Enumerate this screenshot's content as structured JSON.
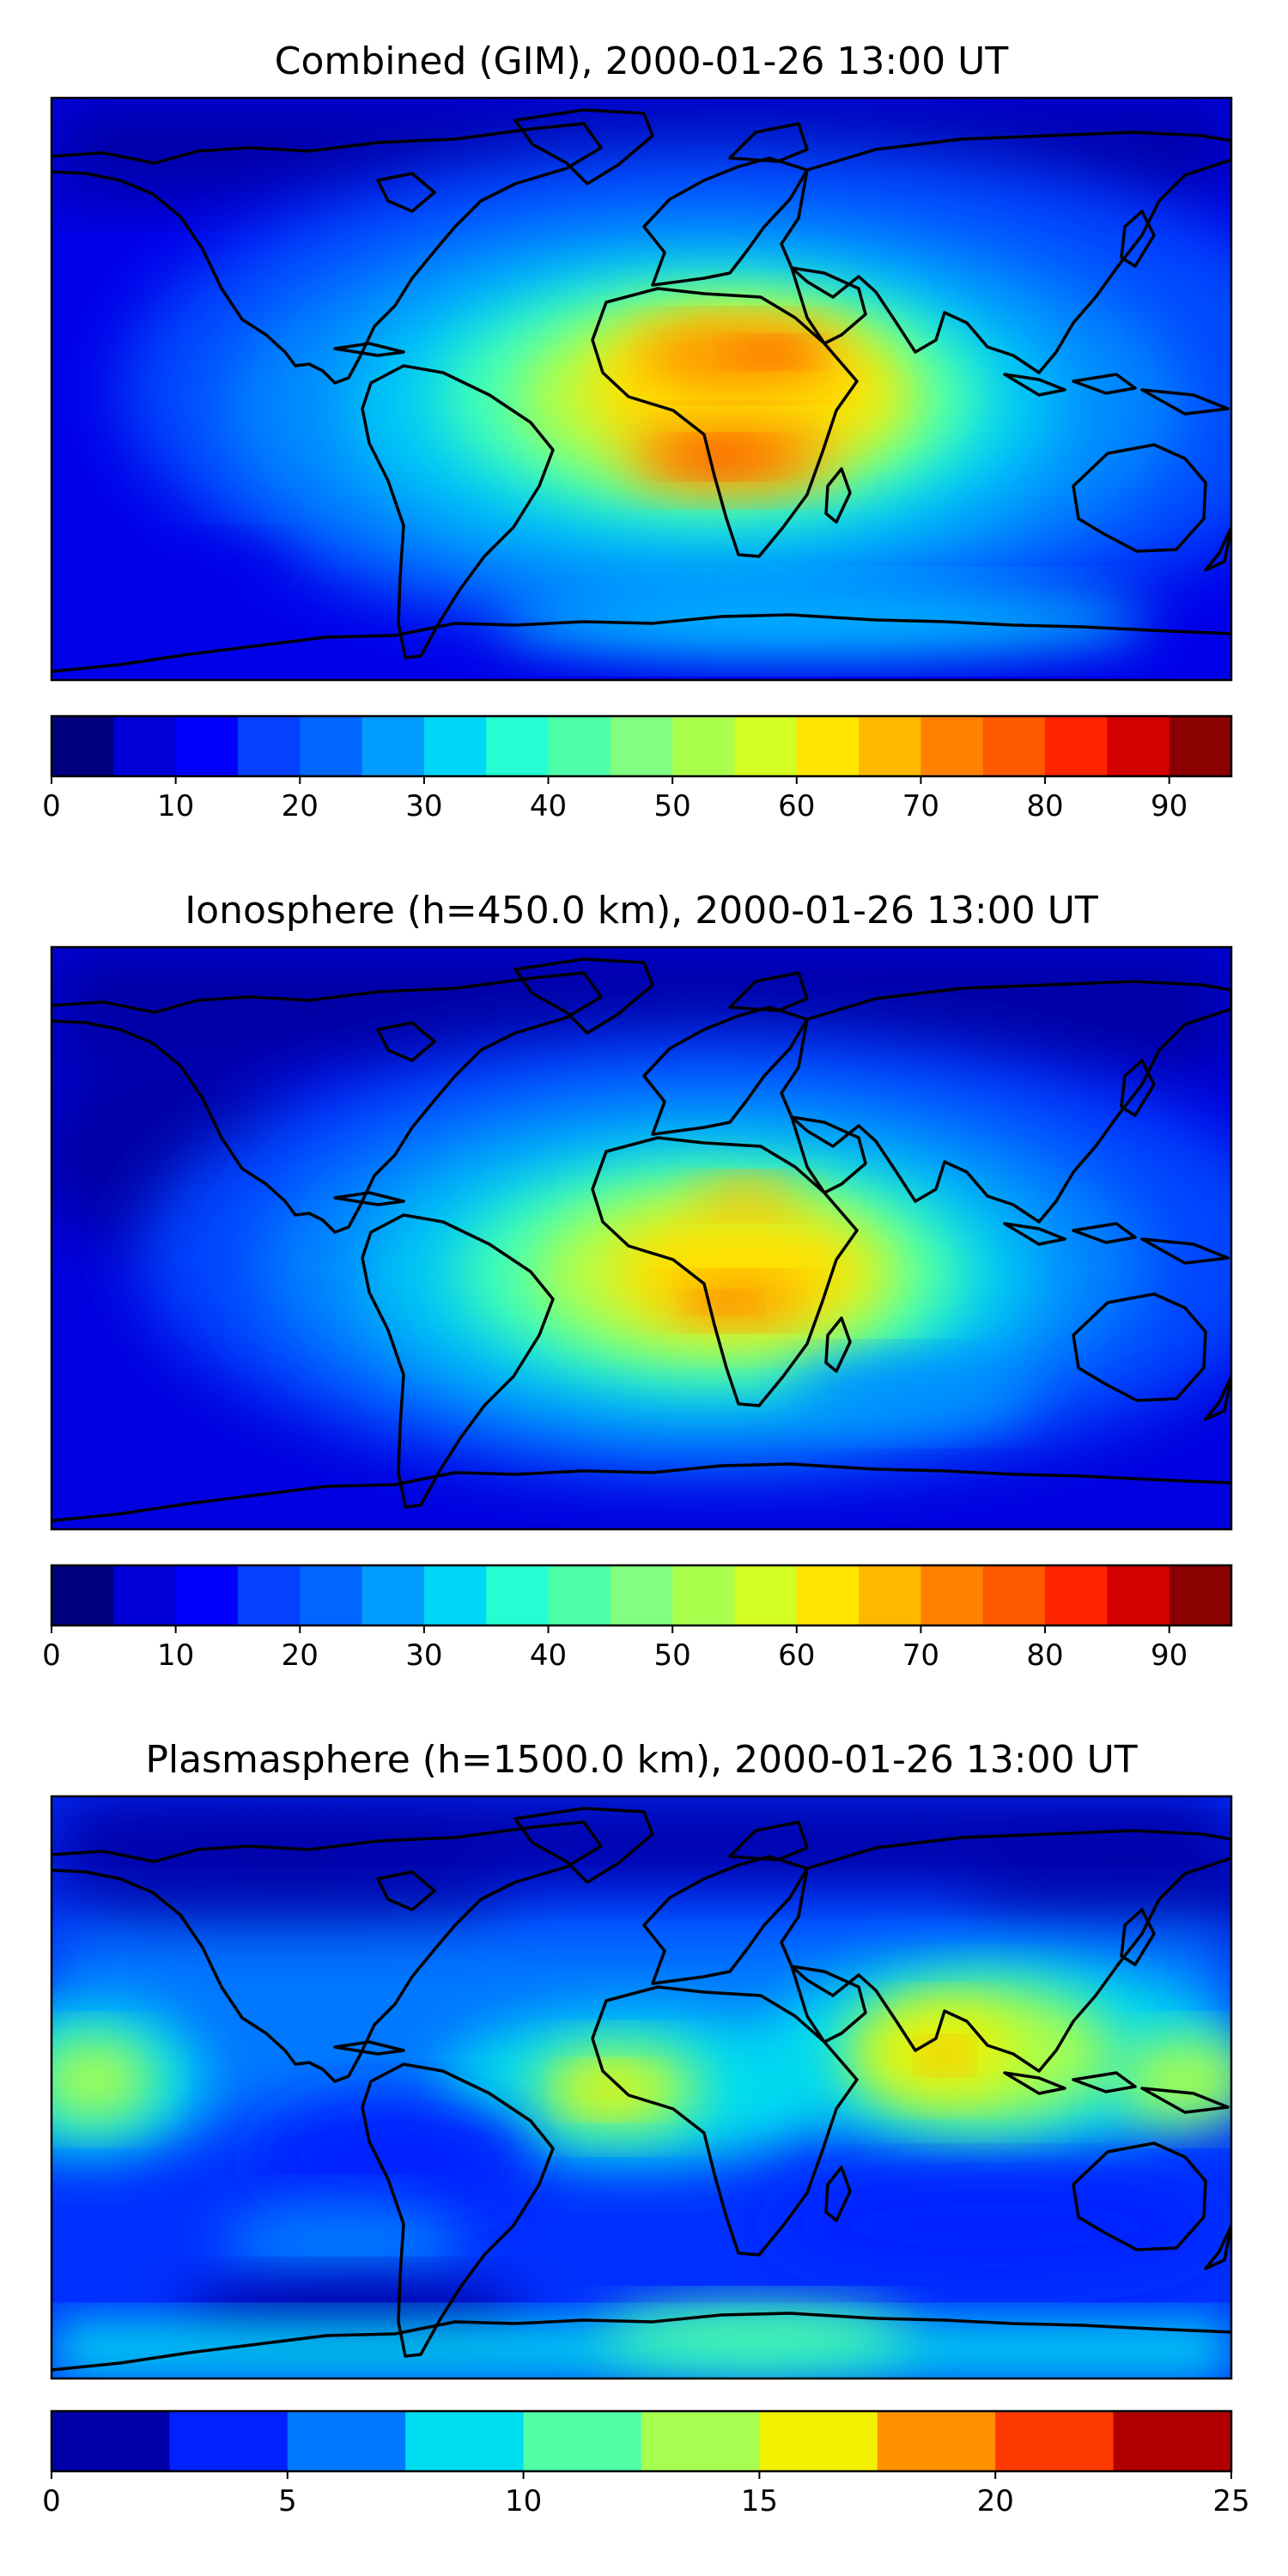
{
  "chart_data": [
    {
      "type": "heatmap",
      "title": "Combined (GIM), 2000-01-26 13:00 UT",
      "map": "world-filled-contour",
      "colormap": "jet",
      "colorbar": {
        "levels": [
          0,
          5,
          10,
          15,
          20,
          25,
          30,
          35,
          40,
          45,
          50,
          55,
          60,
          65,
          70,
          75,
          80,
          85,
          90,
          95
        ],
        "ticks": [
          0,
          10,
          20,
          30,
          40,
          50,
          60,
          70,
          80,
          90
        ],
        "colors": [
          "#00007f",
          "#0000d6",
          "#0000ff",
          "#0540ff",
          "#0066ff",
          "#009dff",
          "#00d6f5",
          "#23ffd3",
          "#4dffa9",
          "#80ff80",
          "#aaff4d",
          "#d3ff23",
          "#ffe600",
          "#ffb800",
          "#ff8100",
          "#ff5a00",
          "#ff2400",
          "#d40000",
          "#8b0000"
        ]
      }
    },
    {
      "type": "heatmap",
      "title": "Ionosphere  (h=450.0 km), 2000-01-26 13:00 UT",
      "map": "world-filled-contour",
      "colormap": "jet",
      "colorbar": {
        "levels": [
          0,
          5,
          10,
          15,
          20,
          25,
          30,
          35,
          40,
          45,
          50,
          55,
          60,
          65,
          70,
          75,
          80,
          85,
          90,
          95
        ],
        "ticks": [
          0,
          10,
          20,
          30,
          40,
          50,
          60,
          70,
          80,
          90
        ],
        "colors": [
          "#00007f",
          "#0000d6",
          "#0000ff",
          "#0540ff",
          "#0066ff",
          "#009dff",
          "#00d6f5",
          "#23ffd3",
          "#4dffa9",
          "#80ff80",
          "#aaff4d",
          "#d3ff23",
          "#ffe600",
          "#ffb800",
          "#ff8100",
          "#ff5a00",
          "#ff2400",
          "#d40000",
          "#8b0000"
        ]
      }
    },
    {
      "type": "heatmap",
      "title": "Plasmasphere (h=1500.0 km), 2000-01-26 13:00 UT",
      "map": "world-filled-contour",
      "colormap": "jet",
      "colorbar": {
        "levels": [
          0,
          2.5,
          5,
          7.5,
          10,
          12.5,
          15,
          17.5,
          20,
          22.5,
          25
        ],
        "ticks": [
          0,
          5,
          10,
          15,
          20,
          25
        ],
        "colors": [
          "#0000a8",
          "#0022ff",
          "#0078ff",
          "#00ddf0",
          "#50ffa6",
          "#a6ff50",
          "#f0f000",
          "#ff9000",
          "#ff3a00",
          "#b10000"
        ]
      }
    }
  ]
}
